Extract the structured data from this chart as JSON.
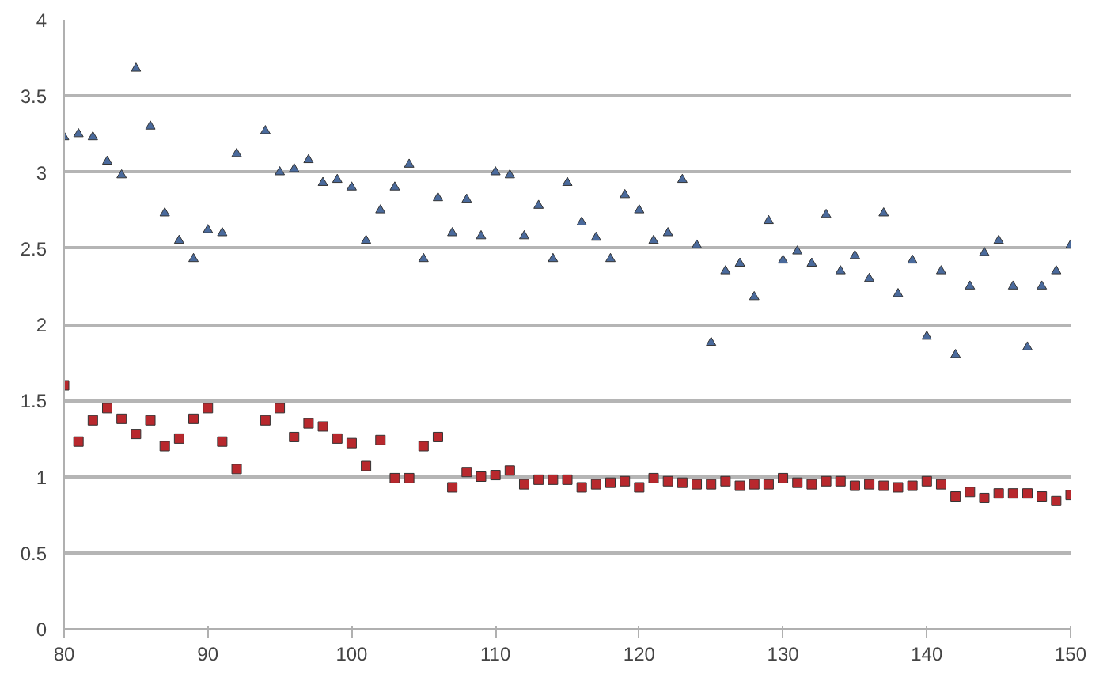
{
  "chart_data": {
    "type": "scatter",
    "x": [
      80,
      81,
      82,
      83,
      84,
      85,
      86,
      87,
      88,
      89,
      90,
      91,
      92,
      93,
      94,
      95,
      96,
      97,
      98,
      99,
      100,
      101,
      102,
      103,
      104,
      105,
      106,
      107,
      108,
      109,
      110,
      111,
      112,
      113,
      114,
      115,
      116,
      117,
      118,
      119,
      120,
      121,
      122,
      123,
      124,
      125,
      126,
      127,
      128,
      129,
      130,
      131,
      132,
      133,
      134,
      135,
      136,
      137,
      138,
      139,
      140,
      141,
      142,
      143,
      144,
      145,
      146,
      147,
      148,
      149,
      150
    ],
    "series": [
      {
        "color": "#4a6a9c",
        "marker": "triangle",
        "values": [
          3.23,
          3.25,
          3.23,
          3.07,
          2.98,
          3.68,
          3.3,
          2.73,
          2.55,
          2.43,
          2.62,
          2.6,
          3.12,
          null,
          3.27,
          3.0,
          3.02,
          3.08,
          2.93,
          2.95,
          2.9,
          2.55,
          2.75,
          2.9,
          3.05,
          2.43,
          2.83,
          2.6,
          2.82,
          2.58,
          3.0,
          2.98,
          2.58,
          2.78,
          2.43,
          2.93,
          2.67,
          2.57,
          2.43,
          2.85,
          2.75,
          2.55,
          2.6,
          2.95,
          2.52,
          1.88,
          2.35,
          2.4,
          2.18,
          2.68,
          2.42,
          2.48,
          2.4,
          2.72,
          2.35,
          2.45,
          2.3,
          2.73,
          2.2,
          2.42,
          1.92,
          2.35,
          1.8,
          2.25,
          2.47,
          2.55,
          2.25,
          1.85,
          2.25,
          2.35,
          2.52
        ]
      },
      {
        "color": "#b8282d",
        "marker": "square",
        "values": [
          1.6,
          1.23,
          1.37,
          1.45,
          1.38,
          1.28,
          1.37,
          1.2,
          1.25,
          1.38,
          1.45,
          1.23,
          1.05,
          null,
          1.37,
          1.45,
          1.26,
          1.35,
          1.33,
          1.25,
          1.22,
          1.07,
          1.24,
          0.99,
          0.99,
          1.2,
          1.26,
          0.93,
          1.03,
          1.0,
          1.01,
          1.04,
          0.95,
          0.98,
          0.98,
          0.98,
          0.93,
          0.95,
          0.96,
          0.97,
          0.93,
          0.99,
          0.97,
          0.96,
          0.95,
          0.95,
          0.97,
          0.94,
          0.95,
          0.95,
          0.99,
          0.96,
          0.95,
          0.97,
          0.97,
          0.94,
          0.95,
          0.94,
          0.93,
          0.94,
          0.97,
          0.95,
          0.87,
          0.9,
          0.86,
          0.89,
          0.89,
          0.89,
          0.87,
          0.84,
          0.88
        ]
      }
    ],
    "xlim": [
      80,
      150
    ],
    "xticks": [
      80,
      90,
      100,
      110,
      120,
      130,
      140,
      150
    ],
    "ylim": [
      0,
      4
    ],
    "yticks": [
      0,
      {
        "value": 0.5,
        "label": "0.5"
      },
      1,
      {
        "value": 1.5,
        "label": "1.5"
      },
      2,
      {
        "value": 2.5,
        "label": "2.5"
      },
      3,
      {
        "value": 3.5,
        "label": "3.5"
      },
      4
    ],
    "grid": "y"
  }
}
